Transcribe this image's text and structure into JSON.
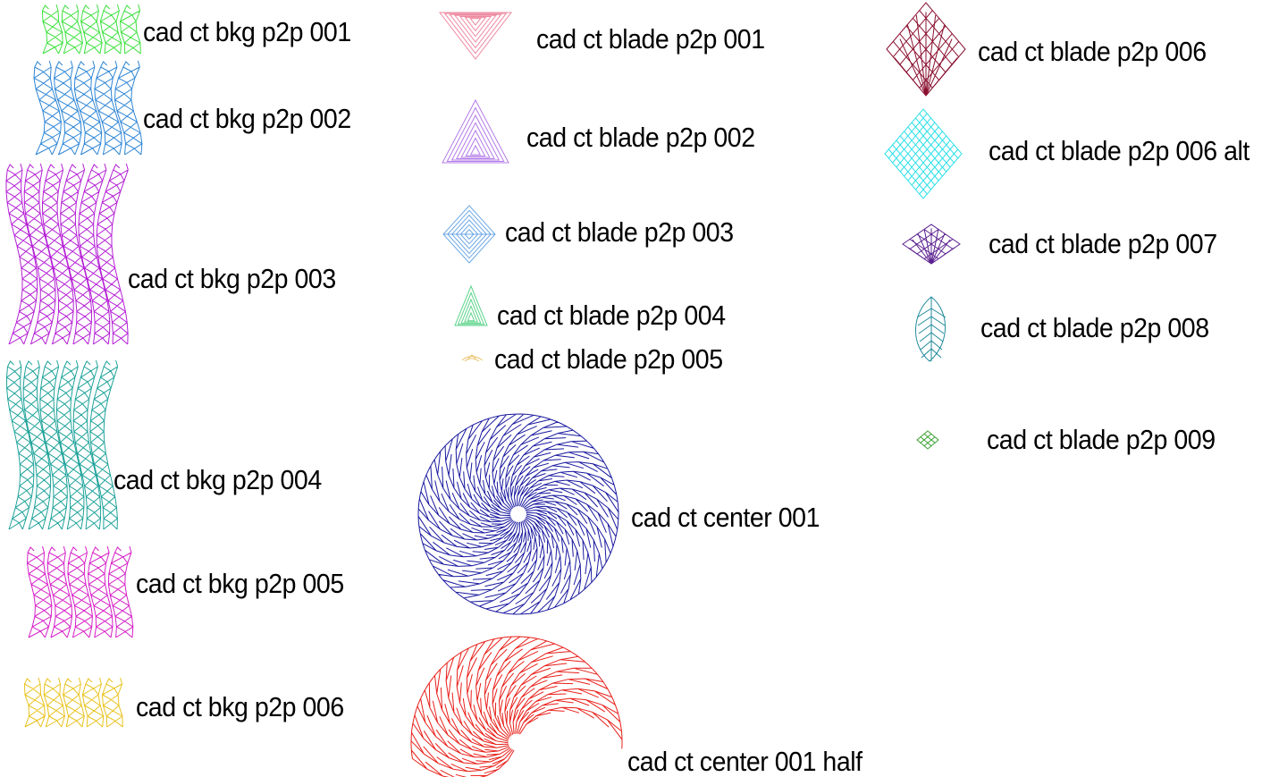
{
  "designs": [
    {
      "id": "bkg-001",
      "label": "cad ct bkg p2p 001",
      "color": "#3ee03e",
      "kind": "bkg"
    },
    {
      "id": "bkg-002",
      "label": "cad ct bkg p2p 002",
      "color": "#2f86d6",
      "kind": "bkg"
    },
    {
      "id": "bkg-003",
      "label": "cad ct bkg p2p 003",
      "color": "#b51fd6",
      "kind": "bkg"
    },
    {
      "id": "bkg-004",
      "label": "cad ct bkg p2p 004",
      "color": "#1fa39a",
      "kind": "bkg"
    },
    {
      "id": "bkg-005",
      "label": "cad ct bkg p2p 005",
      "color": "#d61fc8",
      "kind": "bkg"
    },
    {
      "id": "bkg-006",
      "label": "cad ct bkg p2p 006",
      "color": "#e8c21c",
      "kind": "bkg"
    },
    {
      "id": "blade-001",
      "label": "cad ct blade p2p 001",
      "color": "#ee8aa0",
      "kind": "blade"
    },
    {
      "id": "blade-002",
      "label": "cad ct blade p2p 002",
      "color": "#b47de8",
      "kind": "blade"
    },
    {
      "id": "blade-003",
      "label": "cad ct blade p2p 003",
      "color": "#6ea8e6",
      "kind": "blade"
    },
    {
      "id": "blade-004",
      "label": "cad ct blade p2p 004",
      "color": "#5fd48c",
      "kind": "blade"
    },
    {
      "id": "blade-005",
      "label": "cad ct blade p2p 005",
      "color": "#e8c06a",
      "kind": "blade"
    },
    {
      "id": "center-001",
      "label": "cad ct center 001",
      "color": "#1a1aa0",
      "kind": "center"
    },
    {
      "id": "center-001-half",
      "label": "cad ct center 001 half",
      "color": "#e8201a",
      "kind": "center"
    },
    {
      "id": "blade-006",
      "label": "cad ct blade p2p 006",
      "color": "#8a1030",
      "kind": "blade"
    },
    {
      "id": "blade-006-alt",
      "label": "cad ct blade p2p 006 alt",
      "color": "#2ee0e8",
      "kind": "blade"
    },
    {
      "id": "blade-007",
      "label": "cad ct blade p2p 007",
      "color": "#5a2090",
      "kind": "blade"
    },
    {
      "id": "blade-008",
      "label": "cad ct blade p2p 008",
      "color": "#208a9a",
      "kind": "blade"
    },
    {
      "id": "blade-009",
      "label": "cad ct blade p2p 009",
      "color": "#3aa030",
      "kind": "blade"
    }
  ]
}
